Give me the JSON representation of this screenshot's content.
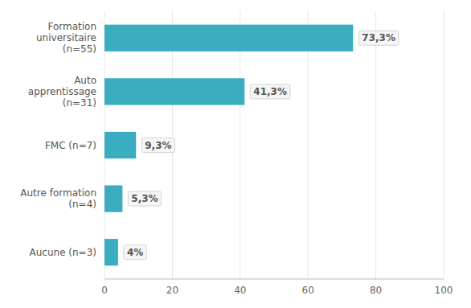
{
  "chart_data": {
    "type": "bar",
    "orientation": "horizontal",
    "categories": [
      "Formation\nuniversitaire\n(n=55)",
      "Auto\napprentissage\n(n=31)",
      "FMC (n=7)",
      "Autre formation\n(n=4)",
      "Aucune (n=3)"
    ],
    "values": [
      73.3,
      41.3,
      9.3,
      5.3,
      4.0
    ],
    "value_labels": [
      "73,3%",
      "41,3%",
      "9,3%",
      "5,3%",
      "4%"
    ],
    "data_labels": true,
    "color": "#3aaec0",
    "xlim": [
      0,
      100
    ],
    "xticks": [
      0,
      20,
      40,
      60,
      80,
      100
    ],
    "grid": true
  }
}
